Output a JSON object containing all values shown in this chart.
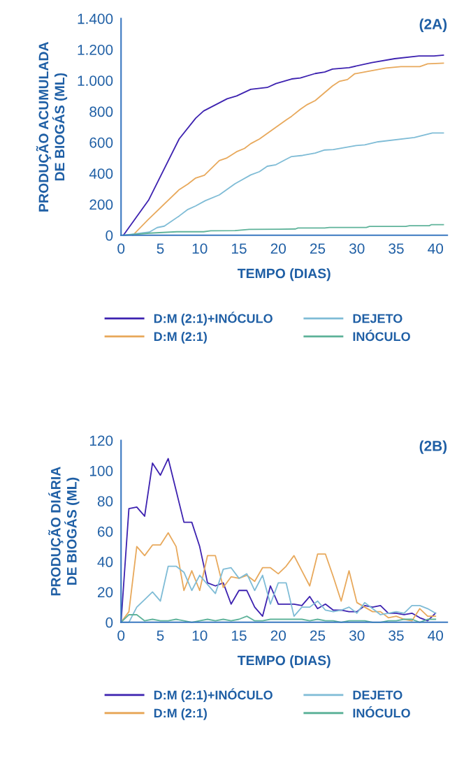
{
  "chart_data": [
    {
      "type": "line",
      "xlabel": "TEMPO (DIAS)",
      "ylabel": "PRODUÇÃO ACUMULADA\nDE BIOGÁS (ML)",
      "annotations": [
        "(2A)"
      ],
      "xlim": [
        0,
        41.5
      ],
      "xticks": [
        0,
        5,
        10,
        15,
        20,
        25,
        30,
        35,
        40
      ],
      "ylim": [
        0,
        1400
      ],
      "yticks": [
        0,
        200,
        400,
        600,
        800,
        {
          "value": 1000,
          "label": "1.000"
        },
        {
          "value": 1200,
          "label": "1.200"
        },
        {
          "value": 1400,
          "label": "1.400"
        }
      ],
      "grid": false,
      "legend": "bottom",
      "marker": "none",
      "line_style": "solid",
      "series": [
        {
          "name": "D:M (2:1)+INÓCULO",
          "color": "#3d22b0",
          "x": [
            0.3,
            3.5,
            7.4,
            9.5,
            10.5,
            13.5,
            14.7,
            16.5,
            18.6,
            19.7,
            21.7,
            22.8,
            24.7,
            25.9,
            26.9,
            29,
            31.9,
            34.8,
            37.9,
            39.8,
            41
          ],
          "values": [
            0,
            227,
            623,
            757,
            803,
            882,
            900,
            943,
            955,
            980,
            1010,
            1016,
            1045,
            1055,
            1074,
            1083,
            1116,
            1141,
            1158,
            1158,
            1164
          ]
        },
        {
          "name": "D:M (2:1)",
          "color": "#e8a95c",
          "x": [
            1.5,
            3.4,
            7.4,
            8.5,
            9.5,
            10.6,
            12.5,
            13.4,
            14.7,
            15.7,
            16.5,
            17.6,
            21,
            21.7,
            22.8,
            23.7,
            24.7,
            26.9,
            27.8,
            28.8,
            29.7,
            33.7,
            35.6,
            38,
            39,
            41
          ],
          "values": [
            0,
            99,
            295,
            331,
            370,
            388,
            483,
            498,
            540,
            561,
            592,
            622,
            745,
            769,
            814,
            845,
            870,
            965,
            995,
            1006,
            1043,
            1081,
            1090,
            1090,
            1108,
            1112
          ]
        },
        {
          "name": "DEJETO",
          "color": "#7fbcd6",
          "x": [
            0.3,
            3.6,
            4.6,
            5.5,
            7.4,
            8.5,
            9.5,
            10.7,
            12.5,
            14.5,
            16.5,
            17.6,
            18.6,
            19.7,
            21,
            21.7,
            23.1,
            24.7,
            25.9,
            27,
            29.9,
            31,
            32.7,
            37.3,
            39.6,
            41
          ],
          "values": [
            0,
            21,
            50,
            59,
            125,
            167,
            190,
            223,
            261,
            333,
            390,
            411,
            446,
            456,
            491,
            509,
            516,
            531,
            551,
            554,
            580,
            584,
            604,
            632,
            661,
            661
          ]
        },
        {
          "name": "INÓCULO",
          "color": "#5fb39a",
          "x": [
            0.3,
            3.6,
            7.1,
            10.5,
            11.4,
            14.5,
            16.3,
            20.1,
            22.2,
            22.5,
            25.9,
            26.5,
            31.2,
            31.6,
            36.2,
            36.7,
            39.2,
            39.5,
            41
          ],
          "values": [
            0,
            14,
            23,
            23,
            29,
            30,
            38,
            39,
            41,
            47,
            47,
            51,
            51,
            57,
            57,
            62,
            62,
            69,
            69
          ]
        }
      ]
    },
    {
      "type": "line",
      "xlabel": "TEMPO (DIAS)",
      "ylabel": "PRODUÇÃO DIÁRIA\nDE BIOGÁS (ML)",
      "annotations": [
        "(2B)"
      ],
      "x": [
        0,
        1,
        2,
        3,
        4,
        5,
        6,
        7,
        8,
        9,
        10,
        11,
        12,
        13,
        14,
        15,
        16,
        17,
        18,
        19,
        20,
        21,
        22,
        23,
        24,
        25,
        26,
        27,
        28,
        29,
        30,
        31,
        32,
        33,
        34,
        35,
        36,
        37,
        38,
        39,
        40
      ],
      "xlim": [
        0,
        41.5
      ],
      "xticks": [
        0,
        5,
        10,
        15,
        20,
        25,
        30,
        35,
        40
      ],
      "ylim": [
        0,
        120
      ],
      "yticks": [
        0,
        20,
        40,
        60,
        80,
        100,
        120
      ],
      "grid": false,
      "legend": "bottom",
      "marker": "none",
      "line_style": "solid",
      "series": [
        {
          "name": "D:M (2:1)+INÓCULO",
          "color": "#3d22b0",
          "values": [
            0,
            75,
            76,
            70,
            105,
            97,
            108,
            87,
            66,
            66,
            50,
            26,
            24,
            26,
            12,
            21,
            21,
            10,
            4,
            24,
            12,
            12,
            12,
            11,
            17,
            9,
            12,
            8,
            8,
            7,
            7,
            11,
            10,
            11,
            6,
            6,
            5,
            6,
            3,
            1,
            6
          ]
        },
        {
          "name": "D:M (2:1)",
          "color": "#e8a95c",
          "values": [
            0,
            7,
            50,
            44,
            51,
            51,
            59,
            50,
            21,
            34,
            21,
            44,
            44,
            23,
            30,
            29,
            31,
            27,
            36,
            36,
            32,
            37,
            44,
            34,
            24,
            45,
            45,
            30,
            14,
            34,
            13,
            10,
            7,
            7,
            3,
            4,
            2,
            1,
            9,
            4,
            4
          ]
        },
        {
          "name": "DEJETO",
          "color": "#7fbcd6",
          "values": [
            0,
            0,
            10,
            15,
            20,
            14,
            37,
            37,
            33,
            21,
            31,
            25,
            19,
            35,
            36,
            29,
            32,
            21,
            31,
            12,
            26,
            26,
            4,
            10,
            10,
            14,
            8,
            7,
            8,
            10,
            6,
            13,
            9,
            5,
            6,
            7,
            6,
            11,
            11,
            9,
            6
          ]
        },
        {
          "name": "INÓCULO",
          "color": "#5fb39a",
          "values": [
            0,
            5,
            5,
            1,
            2,
            1,
            1,
            2,
            1,
            0,
            1,
            2,
            1,
            2,
            1,
            2,
            4,
            1,
            1,
            2,
            2,
            2,
            2,
            2,
            1,
            2,
            1,
            1,
            0,
            1,
            1,
            1,
            0,
            0,
            1,
            1,
            2,
            2,
            0,
            2,
            2
          ]
        }
      ]
    }
  ]
}
